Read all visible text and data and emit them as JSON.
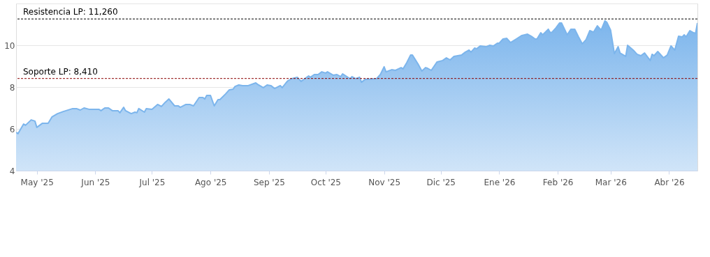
{
  "chart_data": {
    "type": "area",
    "x": [
      "2025-04-20",
      "2025-04-21",
      "2025-04-24",
      "2025-04-25",
      "2025-04-28",
      "2025-04-30",
      "2025-05-01",
      "2025-05-04",
      "2025-05-07",
      "2025-05-09",
      "2025-05-12",
      "2025-05-15",
      "2025-05-20",
      "2025-05-22",
      "2025-05-24",
      "2025-05-26",
      "2025-05-29",
      "2025-06-03",
      "2025-06-04",
      "2025-06-06",
      "2025-06-08",
      "2025-06-10",
      "2025-06-13",
      "2025-06-14",
      "2025-06-16",
      "2025-06-17",
      "2025-06-20",
      "2025-06-22",
      "2025-06-23",
      "2025-06-24",
      "2025-06-27",
      "2025-06-28",
      "2025-07-01",
      "2025-07-04",
      "2025-07-06",
      "2025-07-08",
      "2025-07-10",
      "2025-07-13",
      "2025-07-15",
      "2025-07-16",
      "2025-07-19",
      "2025-07-21",
      "2025-07-23",
      "2025-07-26",
      "2025-07-28",
      "2025-07-29",
      "2025-07-30",
      "2025-08-01",
      "2025-08-03",
      "2025-08-05",
      "2025-08-06",
      "2025-08-09",
      "2025-08-11",
      "2025-08-13",
      "2025-08-14",
      "2025-08-16",
      "2025-08-18",
      "2025-08-21",
      "2025-08-25",
      "2025-08-26",
      "2025-08-29",
      "2025-08-31",
      "2025-09-02",
      "2025-09-04",
      "2025-09-07",
      "2025-09-08",
      "2025-09-10",
      "2025-09-11",
      "2025-09-13",
      "2025-09-16",
      "2025-09-18",
      "2025-09-22",
      "2025-09-23",
      "2025-09-25",
      "2025-09-27",
      "2025-09-29",
      "2025-10-01",
      "2025-10-02",
      "2025-10-05",
      "2025-10-07",
      "2025-10-09",
      "2025-10-10",
      "2025-10-14",
      "2025-10-15",
      "2025-10-17",
      "2025-10-19",
      "2025-10-20",
      "2025-10-22",
      "2025-10-28",
      "2025-10-30",
      "2025-11-01",
      "2025-11-02",
      "2025-11-05",
      "2025-11-07",
      "2025-11-10",
      "2025-11-11",
      "2025-11-13",
      "2025-11-15",
      "2025-11-16",
      "2025-11-19",
      "2025-11-21",
      "2025-11-23",
      "2025-11-24",
      "2025-11-26",
      "2025-11-29",
      "2025-12-02",
      "2025-12-04",
      "2025-12-06",
      "2025-12-08",
      "2025-12-10",
      "2025-12-12",
      "2025-12-14",
      "2025-12-16",
      "2025-12-17",
      "2025-12-19",
      "2025-12-20",
      "2025-12-22",
      "2025-12-25",
      "2025-12-27",
      "2025-12-29",
      "2025-12-31",
      "2026-01-01",
      "2026-01-03",
      "2026-01-05",
      "2026-01-07",
      "2026-01-10",
      "2026-01-13",
      "2026-01-16",
      "2026-01-18",
      "2026-01-20",
      "2026-01-21",
      "2026-01-23",
      "2026-01-24",
      "2026-01-27",
      "2026-01-28",
      "2026-01-29",
      "2026-01-31",
      "2026-02-02",
      "2026-02-03",
      "2026-02-06",
      "2026-02-08",
      "2026-02-10",
      "2026-02-12",
      "2026-02-14",
      "2026-02-16",
      "2026-02-18",
      "2026-02-20",
      "2026-02-22",
      "2026-02-24",
      "2026-02-26",
      "2026-02-27",
      "2026-03-01",
      "2026-03-03",
      "2026-03-05",
      "2026-03-06",
      "2026-03-09",
      "2026-03-10",
      "2026-03-13",
      "2026-03-15",
      "2026-03-17",
      "2026-03-19",
      "2026-03-22",
      "2026-03-23",
      "2026-03-24",
      "2026-03-26",
      "2026-03-29",
      "2026-03-31",
      "2026-04-02",
      "2026-04-04",
      "2026-04-06",
      "2026-04-08",
      "2026-04-09",
      "2026-04-10",
      "2026-04-12",
      "2026-04-14",
      "2026-04-15",
      "2026-04-16"
    ],
    "series": [
      {
        "color": "#7cb5ec",
        "values": [
          5.83,
          5.77,
          6.23,
          6.17,
          6.43,
          6.37,
          6.07,
          6.27,
          6.27,
          6.57,
          6.73,
          6.83,
          6.97,
          6.97,
          6.9,
          7.0,
          6.93,
          6.93,
          6.87,
          7.0,
          7.0,
          6.87,
          6.87,
          6.77,
          7.03,
          6.87,
          6.73,
          6.8,
          6.77,
          6.97,
          6.8,
          6.97,
          6.93,
          7.17,
          7.07,
          7.27,
          7.43,
          7.1,
          7.1,
          7.03,
          7.17,
          7.17,
          7.1,
          7.5,
          7.5,
          7.43,
          7.6,
          7.6,
          7.1,
          7.4,
          7.4,
          7.67,
          7.87,
          7.9,
          8.03,
          8.1,
          8.07,
          8.07,
          8.2,
          8.13,
          7.97,
          8.1,
          8.07,
          7.93,
          8.07,
          7.97,
          8.2,
          8.3,
          8.4,
          8.47,
          8.27,
          8.53,
          8.47,
          8.6,
          8.6,
          8.73,
          8.67,
          8.73,
          8.57,
          8.6,
          8.5,
          8.63,
          8.4,
          8.5,
          8.4,
          8.47,
          8.23,
          8.37,
          8.4,
          8.6,
          8.97,
          8.73,
          8.83,
          8.8,
          8.93,
          8.87,
          9.17,
          9.53,
          9.53,
          9.1,
          8.77,
          8.93,
          8.9,
          8.8,
          9.2,
          9.27,
          9.4,
          9.3,
          9.47,
          9.5,
          9.53,
          9.67,
          9.77,
          9.67,
          9.87,
          9.83,
          9.97,
          9.93,
          10.0,
          9.97,
          10.1,
          10.1,
          10.3,
          10.33,
          10.13,
          10.3,
          10.47,
          10.53,
          10.43,
          10.3,
          10.3,
          10.6,
          10.5,
          10.77,
          10.6,
          10.63,
          10.83,
          11.07,
          11.07,
          10.5,
          10.77,
          10.77,
          10.4,
          10.07,
          10.27,
          10.7,
          10.63,
          10.93,
          10.73,
          11.17,
          11.1,
          10.73,
          9.6,
          9.93,
          9.63,
          9.47,
          10.0,
          9.77,
          9.57,
          9.5,
          9.63,
          9.27,
          9.57,
          9.5,
          9.7,
          9.4,
          9.53,
          9.97,
          9.77,
          10.43,
          10.4,
          10.5,
          10.4,
          10.7,
          10.6,
          10.57,
          11.07
        ]
      }
    ],
    "xlim": [
      "2025-04-20",
      "2026-04-16"
    ],
    "xticks": [
      {
        "value": "2025-05-01",
        "label": "May '25"
      },
      {
        "value": "2025-06-01",
        "label": "Jun '25"
      },
      {
        "value": "2025-07-01",
        "label": "Jul '25"
      },
      {
        "value": "2025-08-01",
        "label": "Ago '25"
      },
      {
        "value": "2025-09-01",
        "label": "Sep '25"
      },
      {
        "value": "2025-10-01",
        "label": "Oct '25"
      },
      {
        "value": "2025-11-01",
        "label": "Nov '25"
      },
      {
        "value": "2025-12-01",
        "label": "Dic '25"
      },
      {
        "value": "2026-01-01",
        "label": "Ene '26"
      },
      {
        "value": "2026-02-01",
        "label": "Feb '26"
      },
      {
        "value": "2026-03-01",
        "label": "Mar '26"
      },
      {
        "value": "2026-04-01",
        "label": "Abr '26"
      }
    ],
    "ylim": [
      4,
      12
    ],
    "yticks": [
      4,
      6,
      8,
      10,
      {
        "value": 12,
        "label": null
      }
    ],
    "ref_lines": [
      {
        "axis": "y",
        "value": 11.26,
        "label": "Resistencia LP: 11,260",
        "color": "#000000",
        "line_style": "dashed"
      },
      {
        "axis": "y",
        "value": 8.41,
        "label": "Soporte LP: 8,410",
        "color": "#8b0000",
        "line_style": "dashed"
      }
    ],
    "grid": "y"
  }
}
